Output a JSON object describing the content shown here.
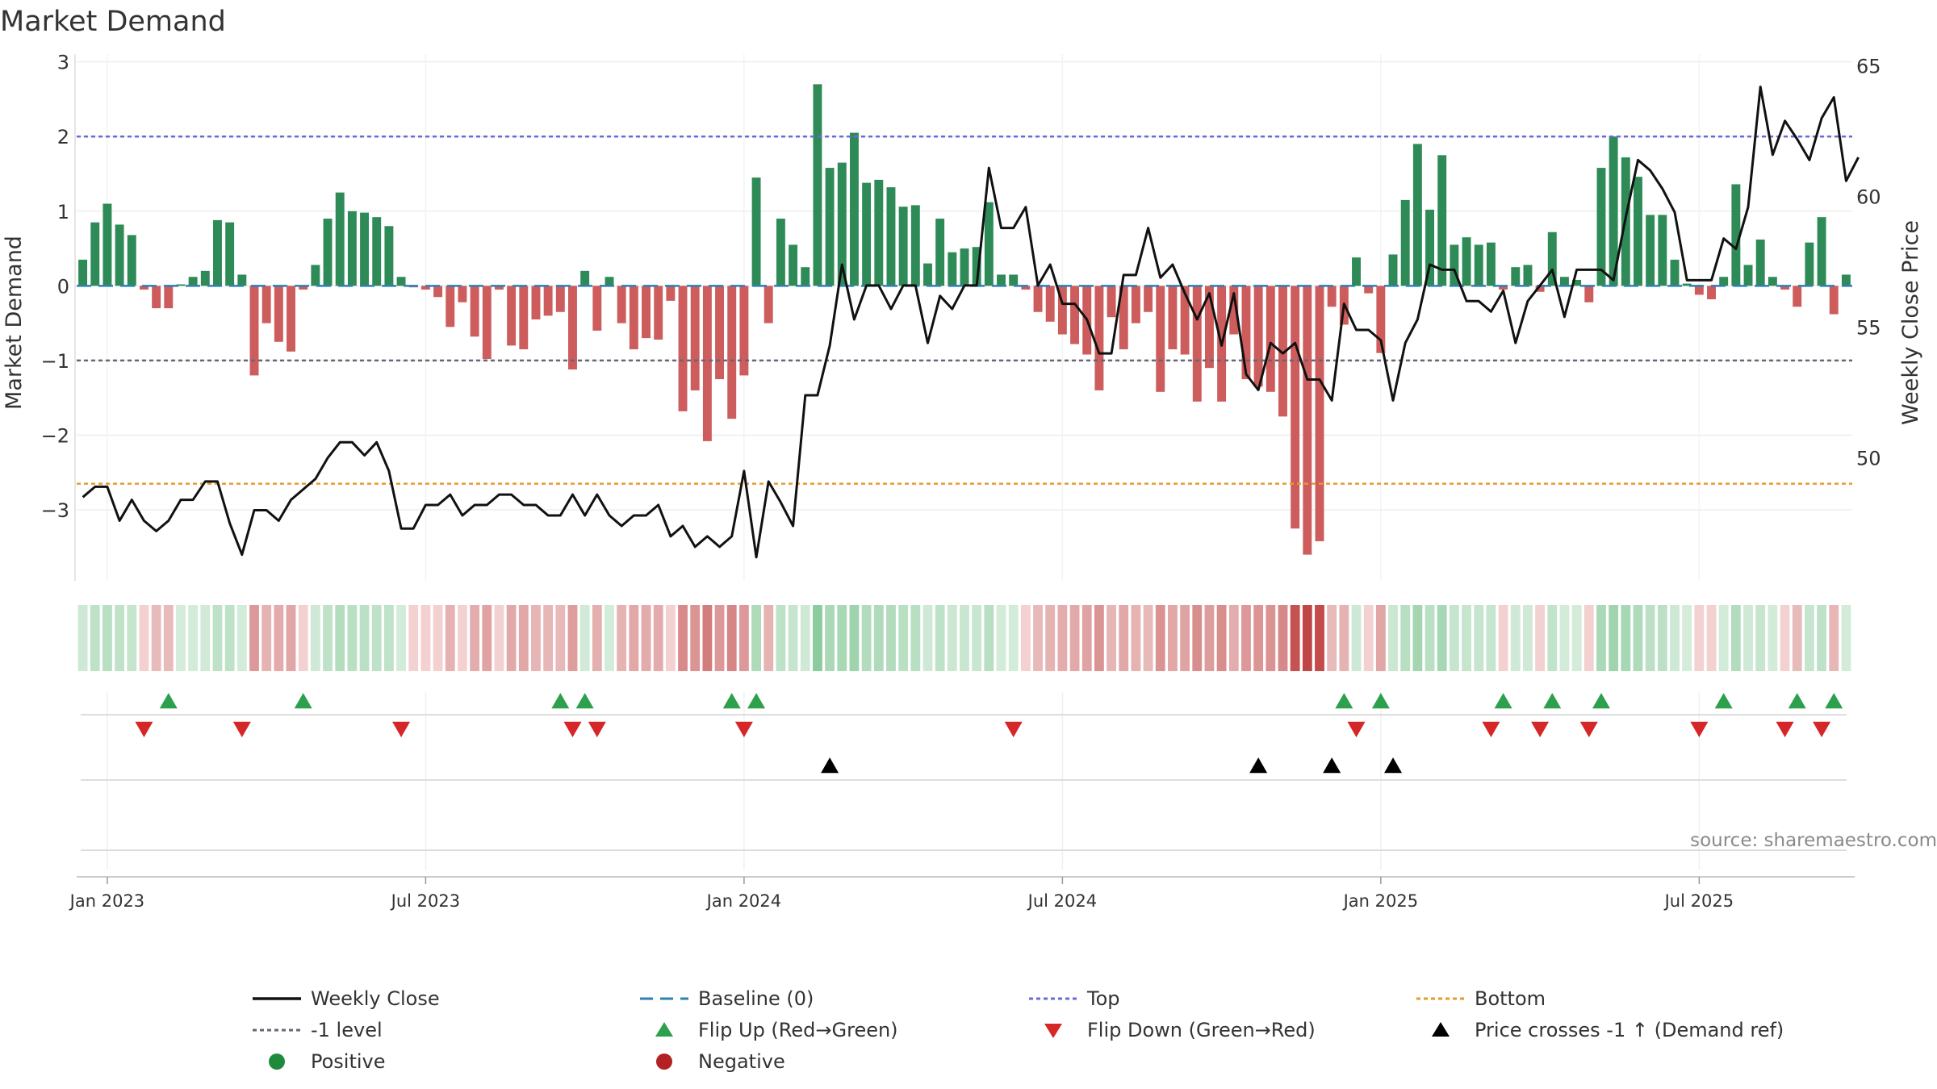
{
  "chart_data": {
    "type": "bar",
    "title": "Market Demand",
    "ylabel": "Market Demand",
    "y2label": "Weekly Close Price",
    "ylim": [
      -3.95,
      3.05
    ],
    "y2lim": [
      45.3,
      65.3
    ],
    "yticks": [
      3,
      2,
      1,
      0,
      -1,
      -2,
      -3
    ],
    "ytick_labels": [
      "3",
      "2",
      "1",
      "0",
      "−1",
      "−2",
      "−3"
    ],
    "y2ticks": [
      65,
      60,
      55,
      50
    ],
    "y2tick_labels": [
      "65",
      "60",
      "55",
      "50"
    ],
    "x_start": "2022-12-19",
    "x_step_days": 7,
    "xtick_labels": [
      "Jan 2023",
      "Jul 2023",
      "Jan 2024",
      "Jul 2024",
      "Jan 2025",
      "Jul 2025"
    ],
    "xtick_week_index": [
      2,
      28,
      54,
      80,
      106,
      132
    ],
    "reference_lines": {
      "top": 2.0,
      "bottom": -2.65,
      "level": -1.0,
      "baseline": 0
    },
    "demand": [
      0.35,
      0.85,
      1.1,
      0.82,
      0.68,
      -0.05,
      -0.3,
      -0.3,
      0.02,
      0.12,
      0.2,
      0.88,
      0.85,
      0.15,
      -1.2,
      -0.5,
      -0.75,
      -0.88,
      -0.05,
      0.28,
      0.9,
      1.25,
      1.0,
      0.98,
      0.92,
      0.8,
      0.12,
      -0.02,
      -0.05,
      -0.15,
      -0.55,
      -0.22,
      -0.68,
      -0.98,
      -0.05,
      -0.8,
      -0.85,
      -0.45,
      -0.4,
      -0.35,
      -1.12,
      0.2,
      -0.6,
      0.12,
      -0.5,
      -0.85,
      -0.7,
      -0.72,
      -0.2,
      -1.68,
      -1.4,
      -2.08,
      -1.25,
      -1.78,
      -1.2,
      1.45,
      -0.5,
      0.9,
      0.55,
      0.25,
      2.7,
      1.58,
      1.65,
      2.05,
      1.38,
      1.42,
      1.32,
      1.06,
      1.08,
      0.3,
      0.9,
      0.45,
      0.5,
      0.52,
      1.12,
      0.15,
      0.15,
      -0.05,
      -0.35,
      -0.48,
      -0.65,
      -0.78,
      -0.92,
      -1.4,
      -0.42,
      -0.85,
      -0.5,
      -0.35,
      -1.42,
      -0.85,
      -0.92,
      -1.55,
      -1.1,
      -1.55,
      -0.65,
      -1.25,
      -1.35,
      -1.42,
      -1.75,
      -3.25,
      -3.6,
      -3.42,
      -0.28,
      -0.52,
      0.38,
      -0.1,
      -0.9,
      0.42,
      1.15,
      1.9,
      1.02,
      1.75,
      0.55,
      0.65,
      0.55,
      0.58,
      -0.05,
      0.25,
      0.28,
      -0.08,
      0.72,
      0.12,
      0.08,
      -0.22,
      1.58,
      2.0,
      1.72,
      1.46,
      0.95,
      0.95,
      0.35,
      0.03,
      -0.12,
      -0.18,
      0.12,
      1.36,
      0.28,
      0.62,
      0.12,
      -0.05,
      -0.28,
      0.58,
      0.92,
      -0.38,
      0.15
    ],
    "weekly_close": [
      48.5,
      48.9,
      48.9,
      47.6,
      48.4,
      47.6,
      47.2,
      47.6,
      48.4,
      48.4,
      49.1,
      49.1,
      47.5,
      46.3,
      48.0,
      48.0,
      47.6,
      48.4,
      48.8,
      49.2,
      50.0,
      50.6,
      50.6,
      50.1,
      50.6,
      49.5,
      47.3,
      47.3,
      48.2,
      48.2,
      48.6,
      47.8,
      48.2,
      48.2,
      48.6,
      48.6,
      48.2,
      48.2,
      47.8,
      47.8,
      48.6,
      47.8,
      48.6,
      47.8,
      47.4,
      47.8,
      47.8,
      48.2,
      47.0,
      47.4,
      46.6,
      47.0,
      46.6,
      47.0,
      49.5,
      46.2,
      49.1,
      48.3,
      47.4,
      52.4,
      52.4,
      54.3,
      57.4,
      55.3,
      56.6,
      56.6,
      55.7,
      56.6,
      56.6,
      54.4,
      56.2,
      55.7,
      56.6,
      56.6,
      61.1,
      58.8,
      58.8,
      59.6,
      56.6,
      57.4,
      55.9,
      55.9,
      55.3,
      54.0,
      54.0,
      57.0,
      57.0,
      58.8,
      56.9,
      57.4,
      56.3,
      55.3,
      56.3,
      54.3,
      56.3,
      53.2,
      52.6,
      54.4,
      54.0,
      54.4,
      53.0,
      53.0,
      52.2,
      55.9,
      54.9,
      54.9,
      54.5,
      52.2,
      54.4,
      55.3,
      57.4,
      57.2,
      57.2,
      56.0,
      56.0,
      55.6,
      56.4,
      54.4,
      56.0,
      56.6,
      57.2,
      55.4,
      57.2,
      57.2,
      57.2,
      56.8,
      59.2,
      61.4,
      61.0,
      60.3,
      59.4,
      56.8,
      56.8,
      56.8,
      58.4,
      58.0,
      59.6,
      64.2,
      61.6,
      62.9,
      62.2,
      61.4,
      63.0,
      63.8,
      60.6,
      61.5
    ],
    "heat_strip": {
      "label": "color-coded demand intensity per week"
    },
    "flip_up_week_index": [
      7,
      18,
      39,
      41,
      53,
      55,
      103,
      106,
      116,
      120,
      124,
      134,
      140,
      143
    ],
    "flip_down_week_index": [
      5,
      13,
      26,
      40,
      42,
      54,
      76,
      104,
      115,
      119,
      123,
      132,
      139,
      142
    ],
    "price_cross_week_index": [
      61,
      96,
      102,
      107
    ],
    "legend": [
      {
        "label": "Weekly Close",
        "marker": "line",
        "color": "#111111"
      },
      {
        "label": "Baseline (0)",
        "marker": "dash",
        "color": "#2f7fb5"
      },
      {
        "label": "Top",
        "marker": "dotted",
        "color": "#6a6ad8"
      },
      {
        "label": "Bottom",
        "marker": "dotted",
        "color": "#e69a2e"
      },
      {
        "label": "-1 level",
        "marker": "dotted",
        "color": "#666677"
      },
      {
        "label": "Flip Up (Red→Green)",
        "marker": "triangle-up",
        "color": "#2ca04c"
      },
      {
        "label": "Flip Down (Green→Red)",
        "marker": "triangle-down",
        "color": "#d62728"
      },
      {
        "label": "Price crosses -1 ↑ (Demand ref)",
        "marker": "triangle-up",
        "color": "#000000"
      },
      {
        "label": "Positive",
        "marker": "circle",
        "color": "#1e8b3a"
      },
      {
        "label": "Negative",
        "marker": "circle",
        "color": "#b22222"
      }
    ],
    "source_note": "source: sharemaestro.com"
  },
  "colors": {
    "positive_bar": "#2e8b57",
    "negative_bar": "#cd5c5c",
    "price_line": "#111111",
    "grid": "#eeeeee"
  }
}
